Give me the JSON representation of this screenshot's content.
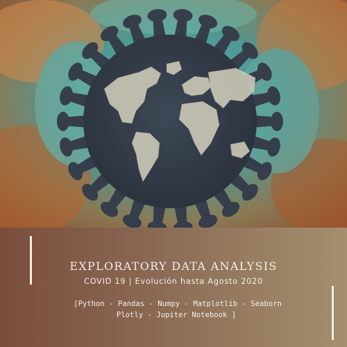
{
  "cover": {
    "title": "EXPLORATORY DATA ANALYSIS",
    "subtitle": "COVID 19  | Evolución hasta Agosto 2020",
    "tools_line1": "[Python - Pandas - Numpy  - Matplotlib  - Seaborn",
    "tools_line2": "Plotly - Jupiter Notebook ]"
  },
  "colors": {
    "panel_left": "#7a4c3c",
    "panel_right": "#a58f6e",
    "text": "#f4efe6",
    "virus_body": "#353e4a",
    "continents": "#c9c6b4",
    "teal_texture": "#4aa6a0"
  },
  "icons": [
    "virus-globe-illustration",
    "world-map-icon"
  ]
}
